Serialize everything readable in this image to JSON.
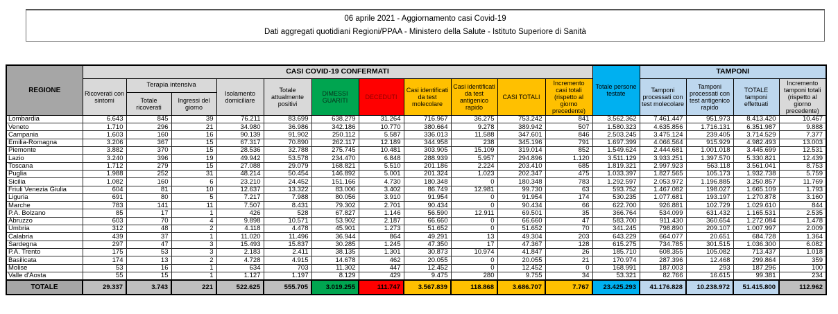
{
  "title": {
    "line1": "06 aprile 2021 - Aggiornamento casi Covid-19",
    "line2": "Dati aggregati quotidiani Regioni/PPAA - Ministero della Salute - Istituto Superiore di Sanità"
  },
  "colors": {
    "header_gray_dark": "#A6A6A6",
    "header_gray_light": "#D9D9D9",
    "green": "#00A550",
    "red": "#FF0000",
    "yellow": "#FFC000",
    "cyan": "#00B0F0",
    "light_blue": "#BDD7EE",
    "total_row_gray": "#BFBFBF"
  },
  "table": {
    "headers": {
      "regione": "REGIONE",
      "confermati_banner": "CASI COVID-19 CONFERMATI",
      "tamponi_banner": "TAMPONI",
      "terapia_intensiva": "Terapia intensiva",
      "ricoverati_sintomi": "Ricoverati con sintomi",
      "ti_totale": "Totale ricoverati",
      "ti_ingressi": "Ingressi del giorno",
      "isolamento": "Isolamento domiciliare",
      "attualmente_positivi": "Totale attualmente positivi",
      "dimessi_guariti": "DIMESSI GUARITI",
      "deceduti": "DECEDUTI",
      "casi_molecolare": "Casi identificati da test molecolare",
      "casi_antigenico": "Casi identificati da test antigenico rapido",
      "casi_totali": "CASI TOTALI",
      "incremento_casi": "Incremento casi totali (rispetto al giorno precedente)",
      "persone_testate": "Totale persone testate",
      "tamponi_molecolare": "Tamponi processati con test molecolare",
      "tamponi_antigenico": "Tamponi processati con test antigenico rapido",
      "tamponi_totale": "TOTALE tamponi effettuati",
      "incremento_tamponi": "Incremento tamponi totali (rispetto al giorno precedente)"
    },
    "rows": [
      {
        "regione": "Lombardia",
        "values": [
          "6.643",
          "845",
          "39",
          "76.211",
          "83.699",
          "638.279",
          "31.264",
          "716.967",
          "36.275",
          "753.242",
          "841",
          "3.562.362",
          "7.461.447",
          "951.973",
          "8.413.420",
          "10.467"
        ]
      },
      {
        "regione": "Veneto",
        "values": [
          "1.710",
          "296",
          "21",
          "34.980",
          "36.986",
          "342.186",
          "10.770",
          "380.664",
          "9.278",
          "389.942",
          "507",
          "1.580.323",
          "4.635.856",
          "1.716.131",
          "6.351.987",
          "9.888"
        ]
      },
      {
        "regione": "Campania",
        "values": [
          "1.603",
          "160",
          "16",
          "90.139",
          "91.902",
          "250.112",
          "5.587",
          "336.013",
          "11.588",
          "347.601",
          "846",
          "2.503.245",
          "3.475.124",
          "239.405",
          "3.714.529",
          "7.377"
        ]
      },
      {
        "regione": "Emilia-Romagna",
        "values": [
          "3.206",
          "367",
          "15",
          "67.317",
          "70.890",
          "262.117",
          "12.189",
          "344.958",
          "238",
          "345.196",
          "791",
          "1.697.399",
          "4.066.564",
          "915.929",
          "4.982.493",
          "13.003"
        ]
      },
      {
        "regione": "Piemonte",
        "values": [
          "3.882",
          "370",
          "15",
          "28.536",
          "32.788",
          "275.745",
          "10.481",
          "303.905",
          "15.109",
          "319.014",
          "852",
          "1.549.624",
          "2.444.681",
          "1.001.018",
          "3.445.699",
          "12.531"
        ]
      },
      {
        "regione": "Lazio",
        "values": [
          "3.240",
          "396",
          "19",
          "49.942",
          "53.578",
          "234.470",
          "6.848",
          "288.939",
          "5.957",
          "294.896",
          "1.120",
          "3.511.129",
          "3.933.251",
          "1.397.570",
          "5.330.821",
          "12.439"
        ]
      },
      {
        "regione": "Toscana",
        "values": [
          "1.712",
          "279",
          "15",
          "27.088",
          "29.079",
          "168.821",
          "5.510",
          "201.186",
          "2.224",
          "203.410",
          "685",
          "1.819.321",
          "2.997.923",
          "563.118",
          "3.561.041",
          "8.753"
        ]
      },
      {
        "regione": "Puglia",
        "values": [
          "1.988",
          "252",
          "31",
          "48.214",
          "50.454",
          "146.892",
          "5.001",
          "201.324",
          "1.023",
          "202.347",
          "475",
          "1.033.397",
          "1.827.565",
          "105.173",
          "1.932.738",
          "5.759"
        ]
      },
      {
        "regione": "Sicilia",
        "values": [
          "1.082",
          "160",
          "6",
          "23.210",
          "24.452",
          "151.166",
          "4.730",
          "180.348",
          "0",
          "180.348",
          "783",
          "1.292.597",
          "2.053.972",
          "1.196.885",
          "3.250.857",
          "11.769"
        ]
      },
      {
        "regione": "Friuli Venezia Giulia",
        "values": [
          "604",
          "81",
          "10",
          "12.637",
          "13.322",
          "83.006",
          "3.402",
          "86.749",
          "12.981",
          "99.730",
          "63",
          "593.752",
          "1.467.082",
          "198.027",
          "1.665.109",
          "1.793"
        ]
      },
      {
        "regione": "Liguria",
        "values": [
          "691",
          "80",
          "5",
          "7.217",
          "7.988",
          "80.056",
          "3.910",
          "91.954",
          "0",
          "91.954",
          "174",
          "530.235",
          "1.077.681",
          "193.197",
          "1.270.878",
          "3.160"
        ]
      },
      {
        "regione": "Marche",
        "values": [
          "783",
          "141",
          "11",
          "7.507",
          "8.431",
          "79.302",
          "2.701",
          "90.434",
          "0",
          "90.434",
          "66",
          "622.700",
          "926.881",
          "102.729",
          "1.029.610",
          "844"
        ]
      },
      {
        "regione": "P.A. Bolzano",
        "values": [
          "85",
          "17",
          "1",
          "426",
          "528",
          "67.827",
          "1.146",
          "56.590",
          "12.911",
          "69.501",
          "35",
          "366.764",
          "534.099",
          "631.432",
          "1.165.531",
          "2.535"
        ]
      },
      {
        "regione": "Abruzzo",
        "values": [
          "603",
          "70",
          "4",
          "9.898",
          "10.571",
          "53.902",
          "2.187",
          "66.660",
          "0",
          "66.660",
          "47",
          "583.700",
          "911.430",
          "360.654",
          "1.272.084",
          "1.478"
        ]
      },
      {
        "regione": "Umbria",
        "values": [
          "312",
          "48",
          "2",
          "4.118",
          "4.478",
          "45.901",
          "1.273",
          "51.652",
          "0",
          "51.652",
          "70",
          "341.245",
          "798.890",
          "209.107",
          "1.007.997",
          "2.009"
        ]
      },
      {
        "regione": "Calabria",
        "values": [
          "439",
          "37",
          "1",
          "11.020",
          "11.496",
          "36.944",
          "864",
          "49.291",
          "13",
          "49.304",
          "203",
          "643.229",
          "664.077",
          "20.651",
          "684.728",
          "1.364"
        ]
      },
      {
        "regione": "Sardegna",
        "values": [
          "297",
          "47",
          "3",
          "15.493",
          "15.837",
          "30.285",
          "1.245",
          "47.350",
          "17",
          "47.367",
          "128",
          "615.275",
          "734.785",
          "301.515",
          "1.036.300",
          "6.082"
        ]
      },
      {
        "regione": "P.A. Trento",
        "values": [
          "175",
          "53",
          "3",
          "2.183",
          "2.411",
          "38.135",
          "1.301",
          "30.873",
          "10.974",
          "41.847",
          "26",
          "185.710",
          "608.355",
          "105.082",
          "713.437",
          "1.018"
        ]
      },
      {
        "regione": "Basilicata",
        "values": [
          "174",
          "13",
          "2",
          "4.728",
          "4.915",
          "14.678",
          "462",
          "20.055",
          "0",
          "20.055",
          "21",
          "170.974",
          "287.396",
          "12.468",
          "299.864",
          "359"
        ]
      },
      {
        "regione": "Molise",
        "values": [
          "53",
          "16",
          "1",
          "634",
          "703",
          "11.302",
          "447",
          "12.452",
          "0",
          "12.452",
          "0",
          "168.991",
          "187.003",
          "293",
          "187.296",
          "100"
        ]
      },
      {
        "regione": "Valle d'Aosta",
        "values": [
          "55",
          "15",
          "1",
          "1.127",
          "1.197",
          "8.129",
          "429",
          "9.475",
          "280",
          "9.755",
          "34",
          "53.321",
          "82.766",
          "16.615",
          "99.381",
          "234"
        ]
      }
    ],
    "totale": {
      "label": "TOTALE",
      "values": [
        "29.337",
        "3.743",
        "221",
        "522.625",
        "555.705",
        "3.019.255",
        "111.747",
        "3.567.839",
        "118.868",
        "3.686.707",
        "7.767",
        "23.425.293",
        "41.176.828",
        "10.238.972",
        "51.415.800",
        "112.962"
      ]
    }
  }
}
